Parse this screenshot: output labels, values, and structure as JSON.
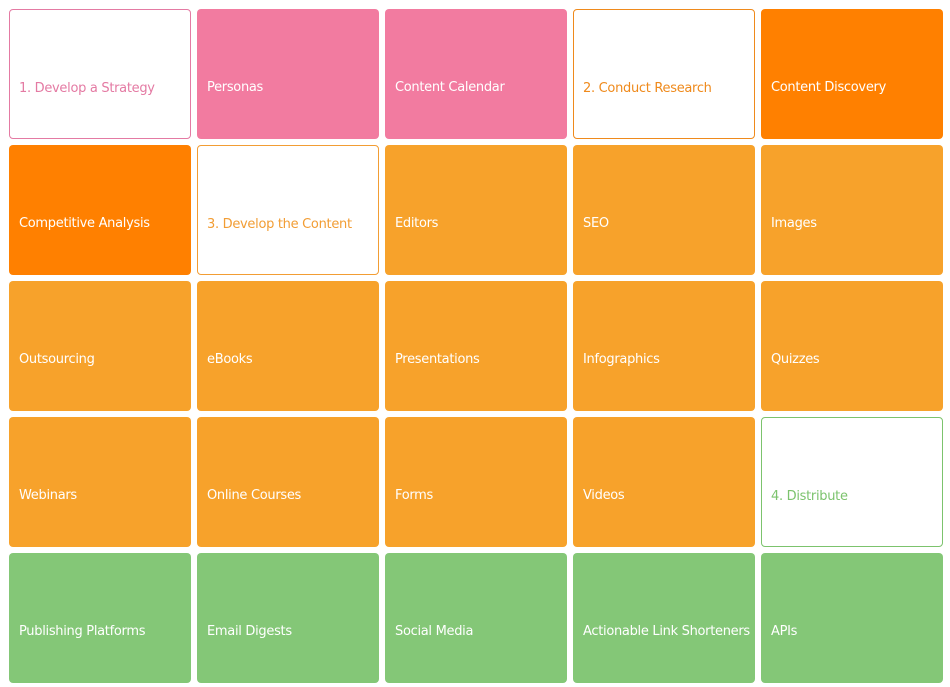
{
  "tiles": [
    {
      "label": "1. Develop a Strategy",
      "color": "#e47aa3",
      "filled": false
    },
    {
      "label": "Personas",
      "color": "#f27ba0",
      "filled": true
    },
    {
      "label": "Content Calendar",
      "color": "#f27ba0",
      "filled": true
    },
    {
      "label": "2. Conduct Research",
      "color": "#ef8a1c",
      "filled": false
    },
    {
      "label": "Content Discovery",
      "color": "#ff8000",
      "filled": true
    },
    {
      "label": "Competitive Analysis",
      "color": "#ff8000",
      "filled": true
    },
    {
      "label": "3. Develop the Content",
      "color": "#f29d34",
      "filled": false
    },
    {
      "label": "Editors",
      "color": "#f7a22b",
      "filled": true
    },
    {
      "label": "SEO",
      "color": "#f7a22b",
      "filled": true
    },
    {
      "label": "Images",
      "color": "#f7a22b",
      "filled": true
    },
    {
      "label": "Outsourcing",
      "color": "#f7a22b",
      "filled": true
    },
    {
      "label": "eBooks",
      "color": "#f7a22b",
      "filled": true
    },
    {
      "label": "Presentations",
      "color": "#f7a22b",
      "filled": true
    },
    {
      "label": "Infographics",
      "color": "#f7a22b",
      "filled": true
    },
    {
      "label": "Quizzes",
      "color": "#f7a22b",
      "filled": true
    },
    {
      "label": "Webinars",
      "color": "#f7a22b",
      "filled": true
    },
    {
      "label": "Online Courses",
      "color": "#f7a22b",
      "filled": true
    },
    {
      "label": "Forms",
      "color": "#f7a22b",
      "filled": true
    },
    {
      "label": "Videos",
      "color": "#f7a22b",
      "filled": true
    },
    {
      "label": "4. Distribute",
      "color": "#7cc36d",
      "filled": false
    },
    {
      "label": "Publishing Platforms",
      "color": "#84c777",
      "filled": true
    },
    {
      "label": "Email Digests",
      "color": "#84c777",
      "filled": true
    },
    {
      "label": "Social Media",
      "color": "#84c777",
      "filled": true
    },
    {
      "label": "Actionable Link Shorteners",
      "color": "#84c777",
      "filled": true
    },
    {
      "label": "APIs",
      "color": "#84c777",
      "filled": true
    }
  ]
}
